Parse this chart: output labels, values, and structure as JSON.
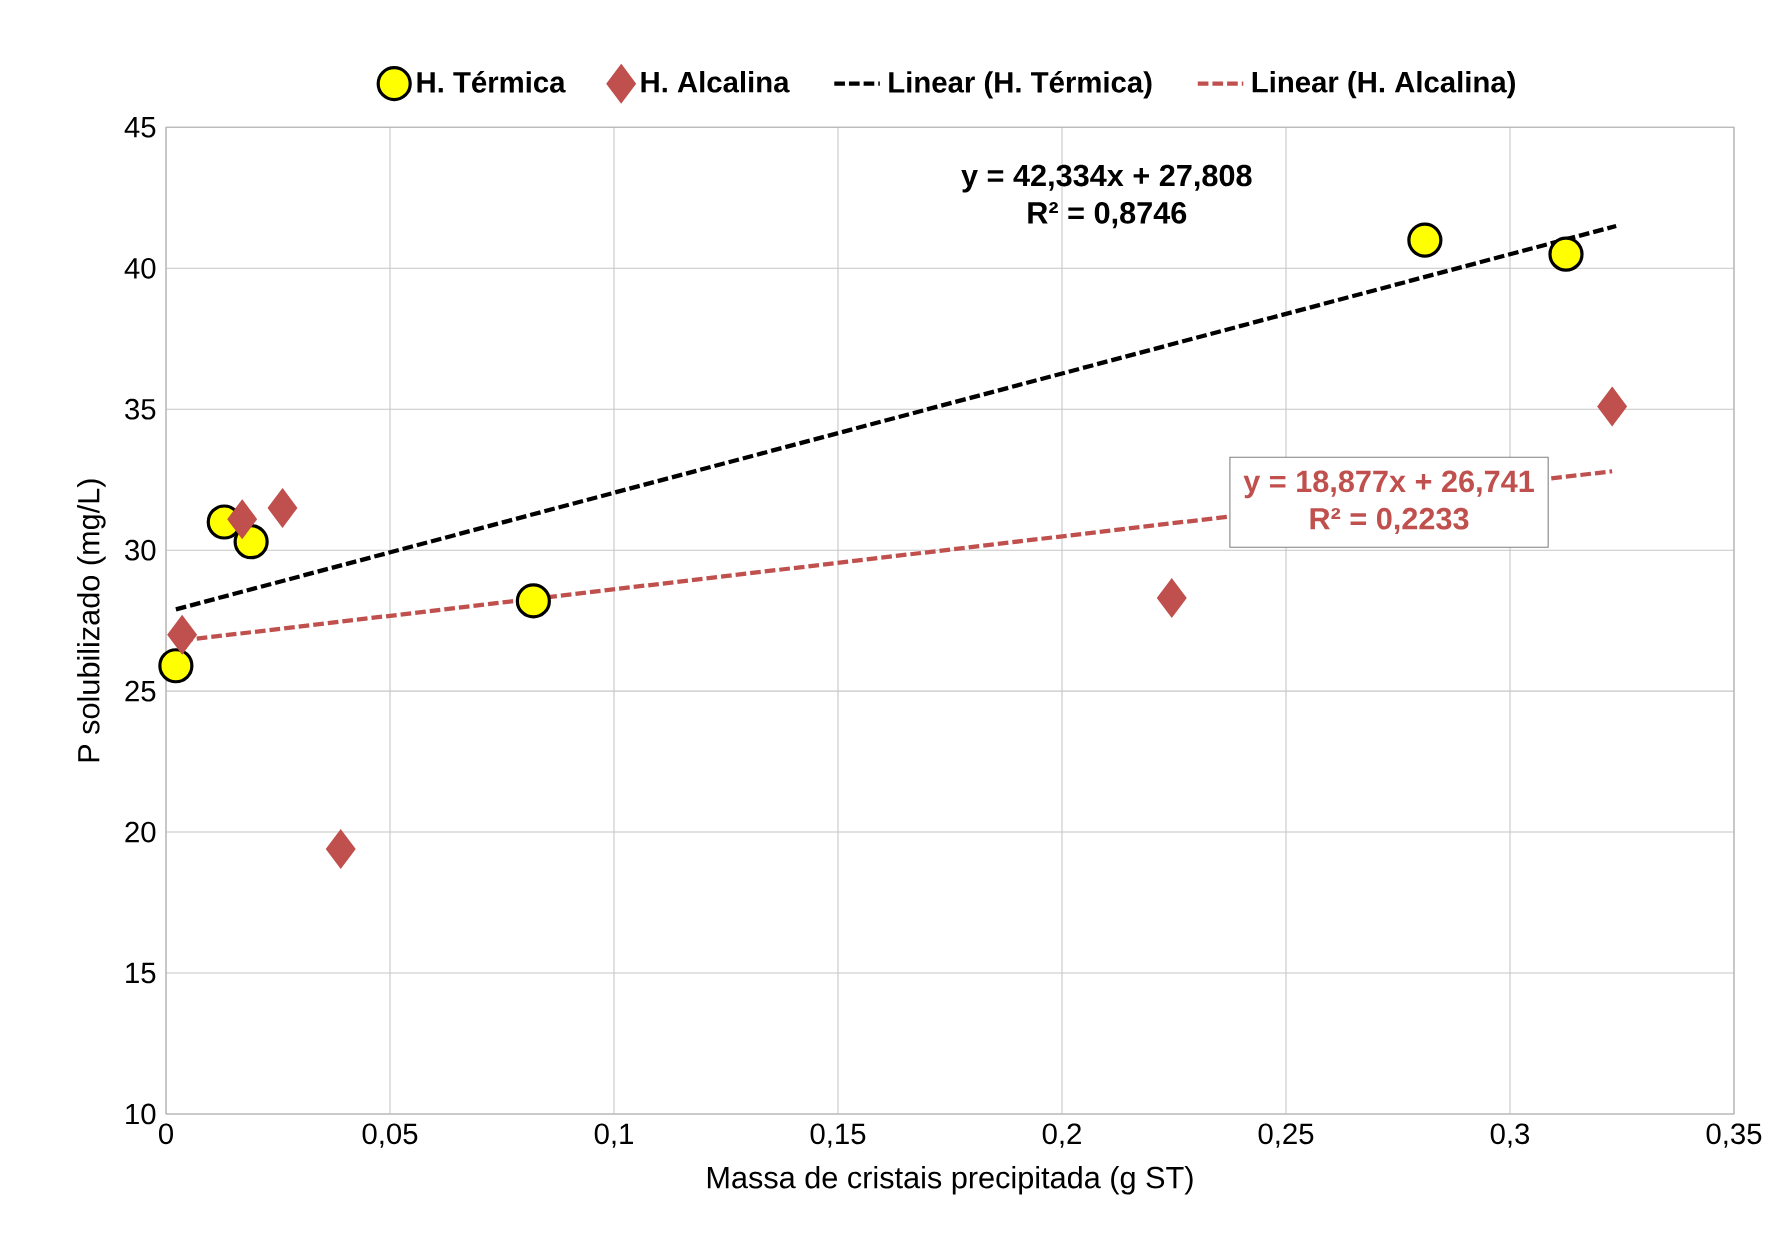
{
  "chart_data": {
    "type": "scatter",
    "xlabel": "Massa de cristais precipitada (g ST)",
    "ylabel": "P solubilizado (mg/L)",
    "xlim": [
      0,
      0.35
    ],
    "ylim": [
      10,
      45
    ],
    "xticks": [
      0,
      {
        "value": 0.05,
        "label": "0,05"
      },
      {
        "value": 0.1,
        "label": "0,1"
      },
      {
        "value": 0.15,
        "label": "0,15"
      },
      {
        "value": 0.2,
        "label": "0,2"
      },
      {
        "value": 0.25,
        "label": "0,25"
      },
      {
        "value": 0.3,
        "label": "0,3"
      },
      {
        "value": 0.35,
        "label": "0,35"
      }
    ],
    "yticks": [
      10,
      15,
      20,
      25,
      30,
      35,
      40,
      45
    ],
    "grid": true,
    "legend": "top",
    "series": [
      {
        "name": "H. Térmica",
        "marker": "circle",
        "color": "#ffff00",
        "x": [
          0.0022,
          0.013,
          0.019,
          0.082,
          0.281,
          0.3125
        ],
        "values": [
          25.9,
          31.0,
          30.3,
          28.2,
          41.0,
          40.5
        ]
      },
      {
        "name": "H. Alcalina",
        "marker": "diamond",
        "color": "#c0504d",
        "x": [
          0.0036,
          0.017,
          0.026,
          0.039,
          0.2245,
          0.3228
        ],
        "values": [
          27.0,
          31.1,
          31.5,
          19.4,
          28.3,
          35.1
        ]
      },
      {
        "name": "Linear (H. Térmica)",
        "type": "line",
        "line_style": "dashed",
        "color": "#000000",
        "x": [
          0.0022,
          0.3237
        ],
        "values": [
          27.9,
          41.5
        ]
      },
      {
        "name": "Linear (H. Alcalina)",
        "type": "line",
        "line_style": "dashed",
        "color": "#c0504d",
        "x": [
          0.0036,
          0.3228
        ],
        "values": [
          26.8,
          32.8
        ]
      }
    ],
    "annotations": [
      "y = 42,334x + 27,808",
      "R² = 0,8746",
      "y = 18,877x + 26,741",
      "R² = 0,2233"
    ]
  }
}
